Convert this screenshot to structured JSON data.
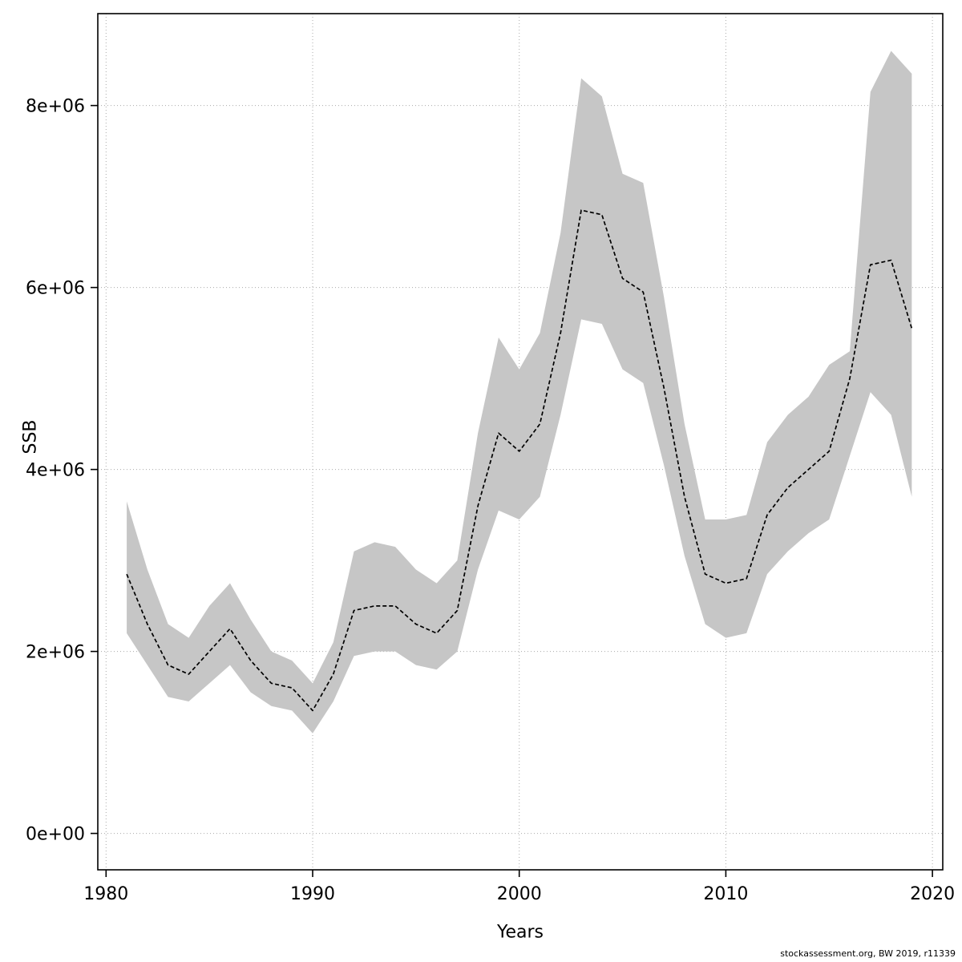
{
  "chart_data": {
    "type": "line",
    "title": "",
    "xlabel": "Years",
    "ylabel": "SSB",
    "grid": true,
    "legend_position": "none",
    "xlim": [
      1979.6,
      2020.5
    ],
    "ylim": [
      -400000,
      9010000
    ],
    "xticks": [
      1980,
      1990,
      2000,
      2010,
      2020
    ],
    "xtick_labels": [
      "1980",
      "1990",
      "2000",
      "2010",
      "2020"
    ],
    "yticks": [
      0,
      2000000,
      4000000,
      6000000,
      8000000
    ],
    "ytick_labels": [
      "0e+00",
      "2e+06",
      "4e+06",
      "6e+06",
      "8e+06"
    ],
    "band_color": "#c6c6c6",
    "line_color": "#000000",
    "grid_color": "#aaaaaa",
    "x": [
      1981,
      1982,
      1983,
      1984,
      1985,
      1986,
      1987,
      1988,
      1989,
      1990,
      1991,
      1992,
      1993,
      1994,
      1995,
      1996,
      1997,
      1998,
      1999,
      2000,
      2001,
      2002,
      2003,
      2004,
      2005,
      2006,
      2007,
      2008,
      2009,
      2010,
      2011,
      2012,
      2013,
      2014,
      2015,
      2016,
      2017,
      2018,
      2019
    ],
    "series": [
      {
        "name": "SSB estimate",
        "values": [
          2850000,
          2300000,
          1850000,
          1750000,
          2000000,
          2250000,
          1900000,
          1650000,
          1600000,
          1350000,
          1750000,
          2450000,
          2500000,
          2500000,
          2300000,
          2200000,
          2450000,
          3600000,
          4400000,
          4200000,
          4500000,
          5500000,
          6850000,
          6800000,
          6100000,
          5950000,
          4900000,
          3700000,
          2850000,
          2750000,
          2800000,
          3500000,
          3800000,
          4000000,
          4200000,
          5000000,
          6250000,
          6300000,
          5550000
        ]
      },
      {
        "name": "upper confidence bound",
        "values": [
          3650000,
          2900000,
          2300000,
          2150000,
          2500000,
          2750000,
          2350000,
          2000000,
          1900000,
          1650000,
          2100000,
          3100000,
          3200000,
          3150000,
          2900000,
          2750000,
          3000000,
          4400000,
          5450000,
          5100000,
          5500000,
          6600000,
          8300000,
          8100000,
          7250000,
          7150000,
          5900000,
          4500000,
          3450000,
          3450000,
          3500000,
          4300000,
          4600000,
          4800000,
          5150000,
          5300000,
          8150000,
          8600000,
          8350000
        ]
      },
      {
        "name": "lower confidence bound",
        "values": [
          2200000,
          1850000,
          1500000,
          1450000,
          1650000,
          1850000,
          1550000,
          1400000,
          1350000,
          1100000,
          1450000,
          1950000,
          2000000,
          2000000,
          1850000,
          1800000,
          2000000,
          2900000,
          3550000,
          3450000,
          3700000,
          4600000,
          5650000,
          5600000,
          5100000,
          4950000,
          4050000,
          3050000,
          2300000,
          2150000,
          2200000,
          2850000,
          3100000,
          3300000,
          3450000,
          4150000,
          4850000,
          4600000,
          3700000
        ]
      }
    ]
  },
  "footer": {
    "text": "stockassessment.org, BW 2019, r11339"
  }
}
